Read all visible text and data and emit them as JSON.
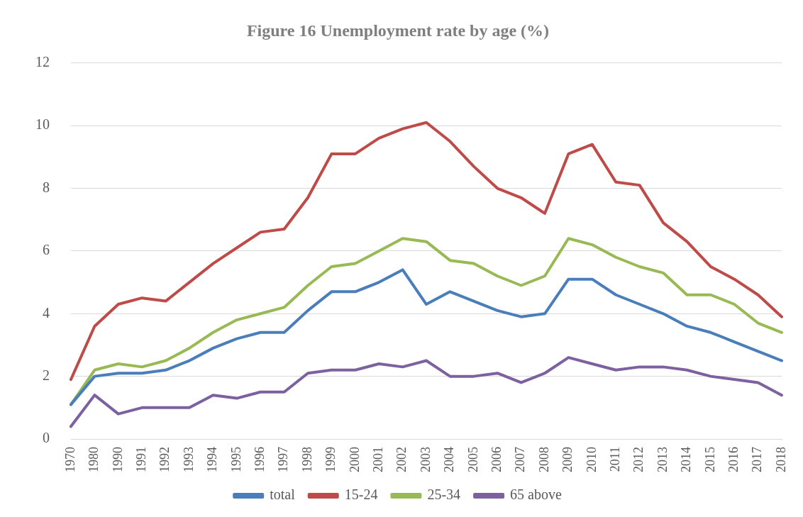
{
  "chart_data": {
    "type": "line",
    "title": "Figure 16 Unemployment rate by age (%)",
    "categories": [
      "1970",
      "1980",
      "1990",
      "1991",
      "1992",
      "1993",
      "1994",
      "1995",
      "1996",
      "1997",
      "1998",
      "1999",
      "2000",
      "2001",
      "2002",
      "2003",
      "2004",
      "2005",
      "2006",
      "2007",
      "2008",
      "2009",
      "2010",
      "2011",
      "2012",
      "2013",
      "2014",
      "2015",
      "2016",
      "2017",
      "2018"
    ],
    "series": [
      {
        "name": "total",
        "color": "#4a7ebb",
        "values": [
          1.1,
          2.0,
          2.1,
          2.1,
          2.2,
          2.5,
          2.9,
          3.2,
          3.4,
          3.4,
          4.1,
          4.7,
          4.7,
          5.0,
          5.4,
          4.3,
          4.7,
          4.4,
          4.1,
          3.9,
          4.0,
          5.1,
          5.1,
          4.6,
          4.3,
          4.0,
          3.6,
          3.4,
          3.1,
          2.8,
          2.5
        ]
      },
      {
        "name": "15-24",
        "color": "#be4b48",
        "values": [
          1.9,
          3.6,
          4.3,
          4.5,
          4.4,
          5.0,
          5.6,
          6.1,
          6.6,
          6.7,
          7.7,
          9.1,
          9.1,
          9.6,
          9.9,
          10.1,
          9.5,
          8.7,
          8.0,
          7.7,
          7.2,
          9.1,
          9.4,
          8.2,
          8.1,
          6.9,
          6.3,
          5.5,
          5.1,
          4.6,
          3.9
        ]
      },
      {
        "name": "25-34",
        "color": "#98b954",
        "values": [
          1.1,
          2.2,
          2.4,
          2.3,
          2.5,
          2.9,
          3.4,
          3.8,
          4.0,
          4.2,
          4.9,
          5.5,
          5.6,
          6.0,
          6.4,
          6.3,
          5.7,
          5.6,
          5.2,
          4.9,
          5.2,
          6.4,
          6.2,
          5.8,
          5.5,
          5.3,
          4.6,
          4.6,
          4.3,
          3.7,
          3.4
        ]
      },
      {
        "name": "65 above",
        "color": "#7d60a0",
        "values": [
          0.4,
          1.4,
          0.8,
          1.0,
          1.0,
          1.0,
          1.4,
          1.3,
          1.5,
          1.5,
          2.1,
          2.2,
          2.2,
          2.4,
          2.3,
          2.5,
          2.0,
          2.0,
          2.1,
          1.8,
          2.1,
          2.6,
          2.4,
          2.2,
          2.3,
          2.3,
          2.2,
          2.0,
          1.9,
          1.8,
          1.4
        ]
      }
    ],
    "ylim": [
      0,
      12
    ],
    "yticks": [
      0,
      2,
      4,
      6,
      8,
      10,
      12
    ],
    "grid": "y",
    "legend": "bottom",
    "marker": "none",
    "line_style": "solid"
  }
}
